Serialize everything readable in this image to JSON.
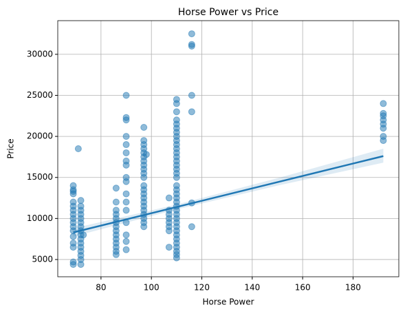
{
  "chart_data": {
    "type": "scatter",
    "title": "Horse Power vs Price",
    "xlabel": "Horse Power",
    "ylabel": "Price",
    "color": "#1f77b4",
    "columns": [
      {
        "x": 69,
        "y": [
          4400,
          4700,
          6500,
          7000,
          7800,
          8500,
          9000,
          9500,
          10000,
          10500,
          11000,
          11500,
          12000,
          13000,
          13300,
          13500,
          14000
        ]
      },
      {
        "x": 71,
        "y": [
          18500
        ]
      },
      {
        "x": 72,
        "y": [
          4400,
          5000,
          5500,
          6000,
          6500,
          7000,
          7500,
          8000,
          8500,
          9000,
          9500,
          10000,
          10500,
          11000,
          11500,
          12200
        ]
      },
      {
        "x": 73,
        "y": [
          8000
        ]
      },
      {
        "x": 86,
        "y": [
          5600,
          6000,
          6500,
          7000,
          7500,
          8000,
          8500,
          9000,
          9500,
          10000,
          10500,
          11000,
          12000,
          13700
        ]
      },
      {
        "x": 90,
        "y": [
          6200,
          7200,
          8000,
          9500,
          11000,
          12000,
          13000,
          14500,
          15000,
          16500,
          17000,
          18000,
          19000,
          20000,
          22000,
          22300,
          25000
        ]
      },
      {
        "x": 97,
        "y": [
          9000,
          9500,
          10000,
          10500,
          11000,
          11500,
          12000,
          12500,
          13000,
          13500,
          14000,
          15000,
          15500,
          16000,
          16500,
          17000,
          17500,
          18000,
          18500,
          19000,
          19500,
          21100
        ]
      },
      {
        "x": 98,
        "y": [
          17800
        ]
      },
      {
        "x": 107,
        "y": [
          6500,
          8500,
          9000,
          9500,
          10000,
          10500,
          11000,
          12500
        ]
      },
      {
        "x": 110,
        "y": [
          5200,
          5600,
          6000,
          6500,
          7000,
          7500,
          8000,
          8500,
          9000,
          9500,
          10000,
          10500,
          11000,
          11500,
          12000,
          12500,
          13000,
          13500,
          14000,
          15000,
          15500,
          16000,
          16500,
          17000,
          17500,
          18000,
          18500,
          19000,
          19500,
          20000,
          20500,
          21000,
          21500,
          22000,
          23000,
          24000,
          24500
        ]
      },
      {
        "x": 116,
        "y": [
          9000,
          11900,
          23000,
          25000,
          31000,
          31200,
          32500
        ]
      },
      {
        "x": 192,
        "y": [
          19500,
          20000,
          21000,
          21500,
          22000,
          22500,
          22800,
          24000
        ]
      }
    ],
    "regression": {
      "x": [
        69,
        192
      ],
      "y": [
        8300,
        17600
      ]
    },
    "ci": {
      "x": [
        69,
        110,
        150,
        192
      ],
      "lower": [
        7800,
        11100,
        14000,
        16800
      ],
      "upper": [
        8800,
        11700,
        14900,
        18500
      ]
    },
    "xlim": [
      62.85,
      198.15
    ],
    "ylim": [
      2900,
      34100
    ],
    "xticks": [
      80,
      100,
      120,
      140,
      160,
      180
    ],
    "yticks": [
      5000,
      10000,
      15000,
      20000,
      25000,
      30000
    ],
    "grid": true
  }
}
